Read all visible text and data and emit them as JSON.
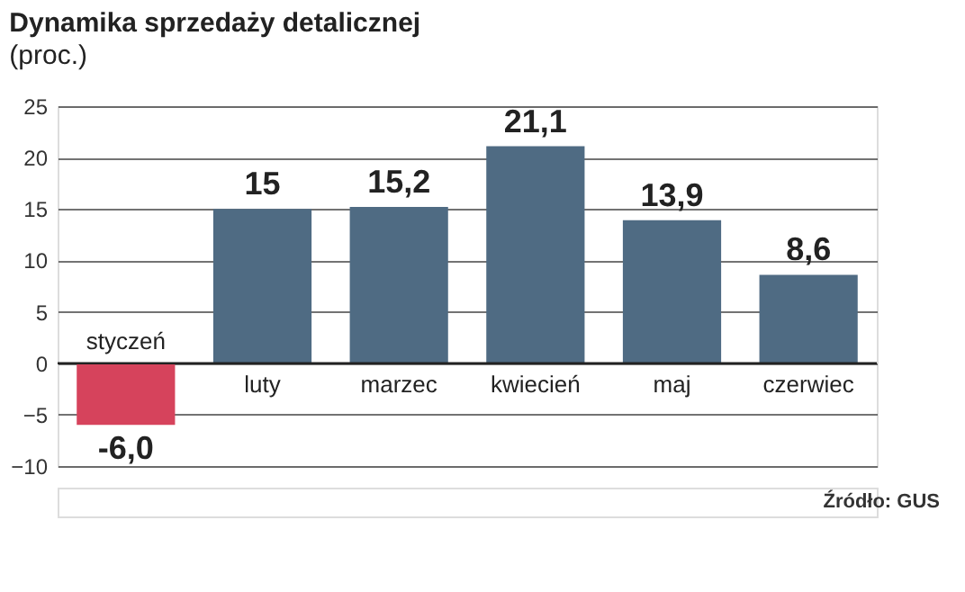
{
  "chart_data": {
    "type": "bar",
    "title": "Dynamika sprzedaży detalicznej",
    "subtitle": "(proc.)",
    "categories": [
      "styczeń",
      "luty",
      "marzec",
      "kwiecień",
      "maj",
      "czerwiec"
    ],
    "values": [
      -6.0,
      15,
      15.2,
      21.1,
      13.9,
      8.6
    ],
    "value_labels": [
      "-6,0",
      "15",
      "15,2",
      "21,1",
      "13,9",
      "8,6"
    ],
    "colors": [
      "#d6435c",
      "#4f6b83",
      "#4f6b83",
      "#4f6b83",
      "#4f6b83",
      "#4f6b83"
    ],
    "ylim": [
      -10,
      25
    ],
    "yticks": [
      -10,
      -5,
      0,
      5,
      10,
      15,
      20,
      25
    ],
    "grid": "y",
    "annotations": [
      "Źródło: GUS"
    ]
  }
}
